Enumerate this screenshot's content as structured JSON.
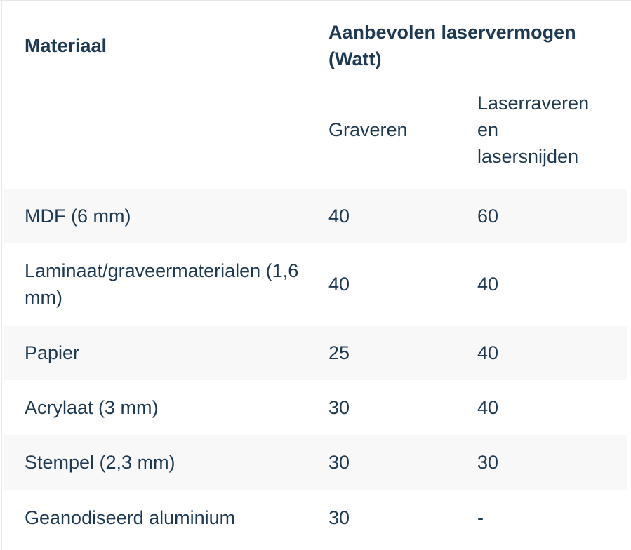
{
  "table": {
    "material_header": "Materiaal",
    "power_group_header": "Aanbevolen laservermogen (Watt)",
    "sub_headers": {
      "graveren": "Graveren",
      "laser": "Laserraveren en lasersnijden"
    },
    "rows": [
      {
        "material": "MDF (6 mm)",
        "graveren": "40",
        "laser": "60"
      },
      {
        "material": "Laminaat/graveermaterialen (1,6 mm)",
        "graveren": "40",
        "laser": "40"
      },
      {
        "material": "Papier",
        "graveren": "25",
        "laser": "40"
      },
      {
        "material": "Acrylaat (3 mm)",
        "graveren": "30",
        "laser": "40"
      },
      {
        "material": "Stempel (2,3 mm)",
        "graveren": "30",
        "laser": "30"
      },
      {
        "material": "Geanodiseerd aluminium",
        "graveren": "30",
        "laser": "-"
      }
    ],
    "colors": {
      "text": "#1e3a53",
      "stripe": "#f8f8f9",
      "background": "#ffffff"
    }
  }
}
